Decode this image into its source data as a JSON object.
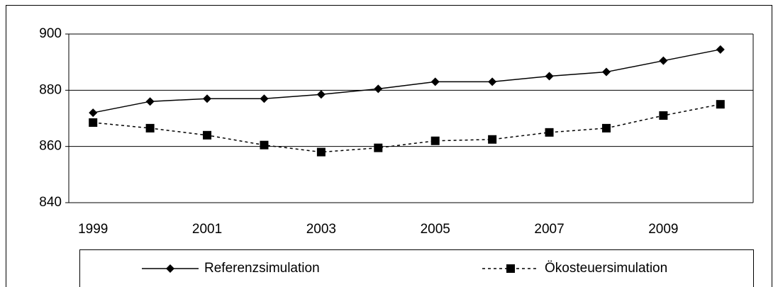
{
  "chart_data": {
    "type": "line",
    "categories": [
      "1999",
      null,
      "2001",
      null,
      "2003",
      null,
      "2005",
      null,
      "2007",
      null,
      "2009",
      null
    ],
    "series": [
      {
        "name": "Referenzsimulation",
        "color": "#000000",
        "dash": "solid",
        "marker": "diamond",
        "values": [
          872,
          876,
          877,
          877,
          878.5,
          880.5,
          883,
          883,
          885,
          886.5,
          890.5,
          894.5
        ]
      },
      {
        "name": "Ökosteuersimulation",
        "color": "#000000",
        "dash": "dotted",
        "marker": "square",
        "values": [
          868.5,
          866.5,
          864,
          860.5,
          858,
          859.5,
          862,
          862.5,
          865,
          866.5,
          871,
          875
        ]
      }
    ],
    "ylim": [
      840,
      900
    ],
    "yticks": [
      840,
      860,
      880,
      900
    ],
    "grid": true,
    "legend": "bottom"
  }
}
